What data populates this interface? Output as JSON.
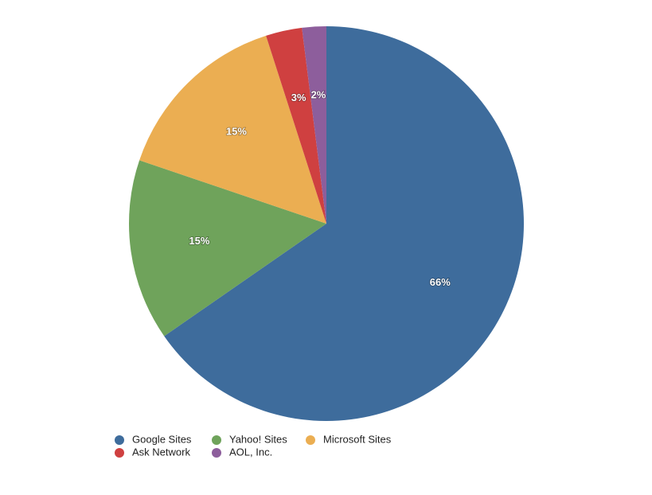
{
  "chart_data": {
    "type": "pie",
    "categories": [
      "Google Sites",
      "Yahoo! Sites",
      "Microsoft Sites",
      "Ask Network",
      "AOL, Inc."
    ],
    "values": [
      66,
      15,
      15,
      3,
      2
    ],
    "value_labels": [
      "66%",
      "15%",
      "15%",
      "3%",
      "2%"
    ],
    "colors": [
      "#3e6c9c",
      "#6fa35b",
      "#ebae52",
      "#cf4040",
      "#8d5e9c"
    ]
  }
}
